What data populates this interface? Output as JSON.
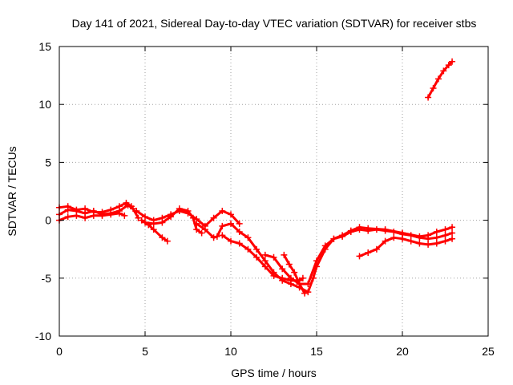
{
  "chart_data": {
    "type": "scatter",
    "title": "Day 141 of 2021, Sidereal Day-to-day VTEC variation (SDTVAR) for receiver stbs",
    "xlabel": "GPS time / hours",
    "ylabel": "SDTVAR / TECUs",
    "xlim": [
      0,
      25
    ],
    "ylim": [
      -10,
      15
    ],
    "xticks": [
      0,
      5,
      10,
      15,
      20,
      25
    ],
    "yticks": [
      -10,
      -5,
      0,
      5,
      10,
      15
    ],
    "xtick_labels": [
      "0",
      "5",
      "10",
      "15",
      "20",
      "25"
    ],
    "ytick_labels": [
      "-10",
      "-5",
      "0",
      "5",
      "10",
      "15"
    ],
    "grid": true,
    "marker": "+",
    "color": "#ff0000",
    "series": [
      {
        "name": "track-1",
        "points": [
          [
            0,
            0.5
          ],
          [
            0.5,
            0.9
          ],
          [
            1,
            0.8
          ],
          [
            1.5,
            0.6
          ],
          [
            2,
            0.8
          ],
          [
            2.5,
            0.5
          ],
          [
            3,
            0.6
          ],
          [
            3.5,
            0.8
          ],
          [
            4,
            1.3
          ],
          [
            4.3,
            1.0
          ],
          [
            4.6,
            0.2
          ]
        ]
      },
      {
        "name": "track-2",
        "points": [
          [
            0,
            1.1
          ],
          [
            0.5,
            1.2
          ],
          [
            1,
            0.9
          ],
          [
            1.5,
            1.0
          ],
          [
            2,
            0.7
          ],
          [
            2.5,
            0.7
          ],
          [
            3,
            0.9
          ],
          [
            3.5,
            1.2
          ],
          [
            3.9,
            1.5
          ],
          [
            4.2,
            1.2
          ]
        ]
      },
      {
        "name": "track-3",
        "points": [
          [
            0,
            0.0
          ],
          [
            0.5,
            0.3
          ],
          [
            1,
            0.4
          ],
          [
            1.5,
            0.2
          ],
          [
            2,
            0.4
          ],
          [
            2.5,
            0.4
          ],
          [
            3,
            0.5
          ],
          [
            3.5,
            0.6
          ],
          [
            3.8,
            0.4
          ]
        ]
      },
      {
        "name": "track-4",
        "points": [
          [
            4.5,
            0.8
          ],
          [
            5,
            0.3
          ],
          [
            5.5,
            0.0
          ],
          [
            6,
            0.2
          ],
          [
            6.5,
            0.5
          ],
          [
            7,
            0.8
          ],
          [
            7.5,
            0.6
          ],
          [
            8,
            0.1
          ],
          [
            8.5,
            -0.5
          ],
          [
            9,
            0.2
          ],
          [
            9.5,
            0.8
          ],
          [
            10,
            0.5
          ],
          [
            10.5,
            -0.3
          ]
        ]
      },
      {
        "name": "track-5",
        "points": [
          [
            4.8,
            0.0
          ],
          [
            5.2,
            -0.4
          ],
          [
            5.5,
            -0.8
          ],
          [
            6,
            -1.5
          ],
          [
            6.3,
            -1.8
          ]
        ]
      },
      {
        "name": "track-6",
        "points": [
          [
            5,
            -0.2
          ],
          [
            5.5,
            -0.3
          ],
          [
            6,
            -0.2
          ],
          [
            6.5,
            0.3
          ],
          [
            7,
            1.0
          ],
          [
            7.5,
            0.8
          ],
          [
            7.8,
            0.2
          ],
          [
            8,
            -0.8
          ],
          [
            8.3,
            -1.1
          ]
        ]
      },
      {
        "name": "track-7",
        "points": [
          [
            8,
            -0.3
          ],
          [
            8.5,
            -0.8
          ],
          [
            9,
            -1.5
          ],
          [
            9.2,
            -1.4
          ],
          [
            9.5,
            -0.5
          ],
          [
            10,
            -0.3
          ],
          [
            10.5,
            -1.0
          ],
          [
            11,
            -1.5
          ],
          [
            11.5,
            -2.5
          ],
          [
            12,
            -3.5
          ],
          [
            12.5,
            -4.5
          ],
          [
            13,
            -5.2
          ],
          [
            13.5,
            -5.5
          ],
          [
            14,
            -5.8
          ],
          [
            14.5,
            -6.2
          ],
          [
            14.8,
            -5.0
          ],
          [
            15,
            -4.0
          ],
          [
            15.5,
            -2.5
          ],
          [
            16,
            -1.6
          ],
          [
            16.5,
            -1.4
          ],
          [
            17,
            -1.0
          ],
          [
            17.5,
            -0.8
          ],
          [
            18,
            -0.9
          ],
          [
            18.5,
            -0.8
          ],
          [
            19,
            -0.9
          ],
          [
            19.5,
            -1.0
          ],
          [
            20,
            -1.2
          ],
          [
            20.5,
            -1.3
          ],
          [
            21,
            -1.5
          ],
          [
            21.5,
            -1.6
          ],
          [
            22,
            -1.5
          ],
          [
            22.5,
            -1.3
          ],
          [
            22.9,
            -1.1
          ]
        ]
      },
      {
        "name": "track-8",
        "points": [
          [
            9.5,
            -1.3
          ],
          [
            10,
            -1.8
          ],
          [
            10.5,
            -2.0
          ],
          [
            11,
            -2.5
          ],
          [
            11.5,
            -3.2
          ],
          [
            12,
            -4.0
          ],
          [
            12.5,
            -4.8
          ],
          [
            13,
            -5.0
          ],
          [
            13.5,
            -5.2
          ],
          [
            14,
            -5.2
          ],
          [
            14.2,
            -5.0
          ]
        ]
      },
      {
        "name": "track-9",
        "points": [
          [
            12,
            -3.0
          ],
          [
            12.5,
            -3.2
          ],
          [
            13,
            -4.2
          ],
          [
            13.5,
            -5.0
          ],
          [
            14,
            -5.5
          ],
          [
            14.5,
            -5.5
          ],
          [
            15,
            -3.5
          ],
          [
            15.5,
            -2.2
          ],
          [
            16,
            -1.6
          ],
          [
            16.5,
            -1.3
          ],
          [
            17,
            -0.9
          ],
          [
            17.5,
            -0.6
          ],
          [
            18,
            -0.7
          ],
          [
            19,
            -0.8
          ],
          [
            20,
            -1.1
          ],
          [
            21,
            -1.4
          ],
          [
            21.5,
            -1.3
          ],
          [
            22,
            -1.0
          ],
          [
            22.5,
            -0.8
          ],
          [
            22.9,
            -0.6
          ]
        ]
      },
      {
        "name": "track-10",
        "points": [
          [
            13.1,
            -3.0
          ],
          [
            13.4,
            -3.8
          ],
          [
            13.7,
            -4.5
          ],
          [
            14,
            -5.5
          ],
          [
            14.3,
            -6.3
          ]
        ]
      },
      {
        "name": "track-11",
        "points": [
          [
            17.5,
            -3.1
          ],
          [
            18,
            -2.8
          ],
          [
            18.5,
            -2.5
          ],
          [
            19,
            -1.8
          ],
          [
            19.5,
            -1.5
          ],
          [
            20,
            -1.6
          ],
          [
            20.5,
            -1.8
          ],
          [
            21,
            -2.0
          ],
          [
            21.5,
            -2.1
          ],
          [
            22,
            -2.0
          ],
          [
            22.5,
            -1.8
          ],
          [
            22.9,
            -1.6
          ]
        ]
      },
      {
        "name": "track-12",
        "points": [
          [
            21.5,
            10.6
          ],
          [
            21.8,
            11.4
          ],
          [
            22.1,
            12.2
          ],
          [
            22.4,
            12.9
          ],
          [
            22.7,
            13.4
          ],
          [
            22.9,
            13.7
          ]
        ]
      }
    ]
  }
}
